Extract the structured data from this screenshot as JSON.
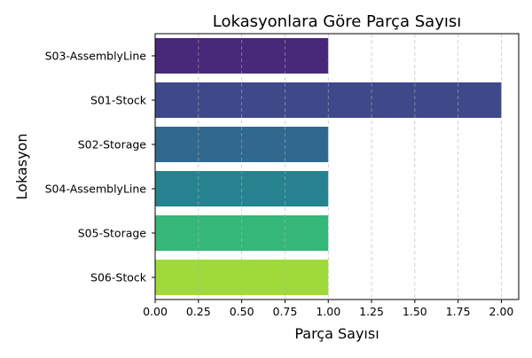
{
  "chart_data": {
    "type": "bar",
    "orientation": "horizontal",
    "title": "Lokasyonlara Göre Parça Sayısı",
    "xlabel": "Parça Sayısı",
    "ylabel": "Lokasyon",
    "categories": [
      "S03-AssemblyLine",
      "S01-Stock",
      "S02-Storage",
      "S04-AssemblyLine",
      "S05-Storage",
      "S06-Stock"
    ],
    "values": [
      1,
      2,
      1,
      1,
      1,
      1
    ],
    "colors": [
      "#482878",
      "#3e4989",
      "#31688e",
      "#26828e",
      "#35b779",
      "#9fda3a"
    ],
    "xlim": [
      0,
      2.1
    ],
    "xticks": [
      0.0,
      0.25,
      0.5,
      0.75,
      1.0,
      1.25,
      1.5,
      1.75,
      2.0
    ],
    "xtick_labels": [
      "0.00",
      "0.25",
      "0.50",
      "0.75",
      "1.00",
      "1.25",
      "1.50",
      "1.75",
      "2.00"
    ],
    "grid": "x-dashed",
    "palette": "viridis"
  }
}
